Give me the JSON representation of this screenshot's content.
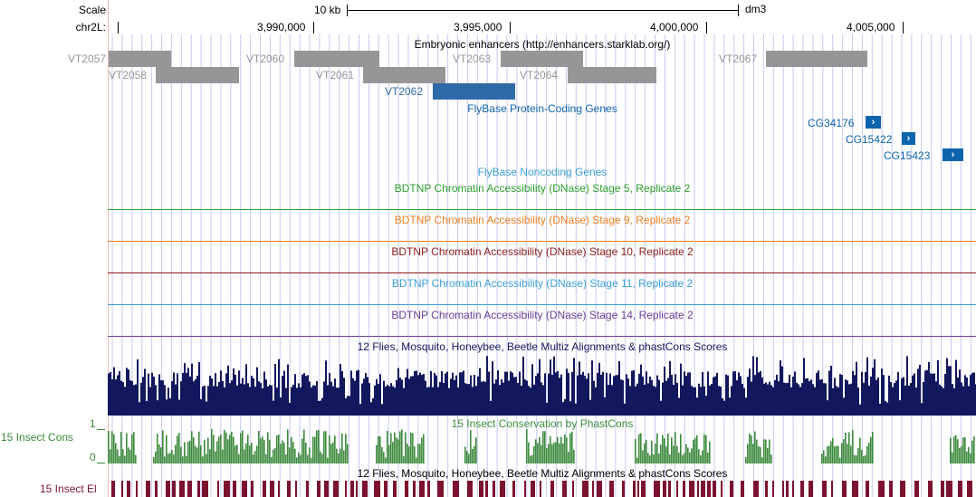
{
  "ruler": {
    "scale_label": "Scale",
    "chrom_label": "chr2L:",
    "scale_bar_label": "10 kb",
    "assembly": "dm3",
    "positions": [
      "3,990,000",
      "3,995,000",
      "4,000,000",
      "4,005,000"
    ]
  },
  "tracks": {
    "enhancers": {
      "title": "Embryonic enhancers (http://enhancers.starklab.org/)",
      "items": [
        "VT2057",
        "VT2058",
        "VT2060",
        "VT2061",
        "VT2062",
        "VT2063",
        "VT2064",
        "VT2067"
      ]
    },
    "flybase_coding": {
      "title": "FlyBase Protein-Coding Genes",
      "genes": [
        "CG34176",
        "CG15422",
        "CG15423"
      ]
    },
    "flybase_noncoding": {
      "title": "FlyBase Noncoding Genes"
    },
    "dnase": [
      {
        "title": "BDTNP Chromatin Accessibility (DNase) Stage 5, Replicate 2",
        "color": "#2ca02c"
      },
      {
        "title": "BDTNP Chromatin Accessibility (DNase) Stage 9, Replicate 2",
        "color": "#f07f1e"
      },
      {
        "title": "BDTNP Chromatin Accessibility (DNase) Stage 10, Replicate 2",
        "color": "#8b1a1a"
      },
      {
        "title": "BDTNP Chromatin Accessibility (DNase) Stage 11, Replicate 2",
        "color": "#3aa0d8"
      },
      {
        "title": "BDTNP Chromatin Accessibility (DNase) Stage 14, Replicate 2",
        "color": "#6a3d9a"
      }
    ],
    "multiz": {
      "title": "12 Flies, Mosquito, Honeybee, Beetle Multiz Alignments & phastCons Scores"
    },
    "phastcons": {
      "title": "15 Insect Conservation by PhastCons",
      "side_label": "15 Insect Cons",
      "axis_top": "1",
      "axis_bottom": "0"
    },
    "elements": {
      "title": "12 Flies, Mosquito, Honeybee, Beetle Multiz Alignments & phastCons Scores",
      "side_label": "15 Insect El"
    }
  },
  "colors": {
    "grid": "#c8c8f0",
    "enhancer": "#969696",
    "selected_enhancer": "#2e6aa8",
    "gene": "#0c64ad",
    "multiz": "#12175e",
    "phastcons": "#3c8a3c",
    "elements": "#7b1230"
  }
}
